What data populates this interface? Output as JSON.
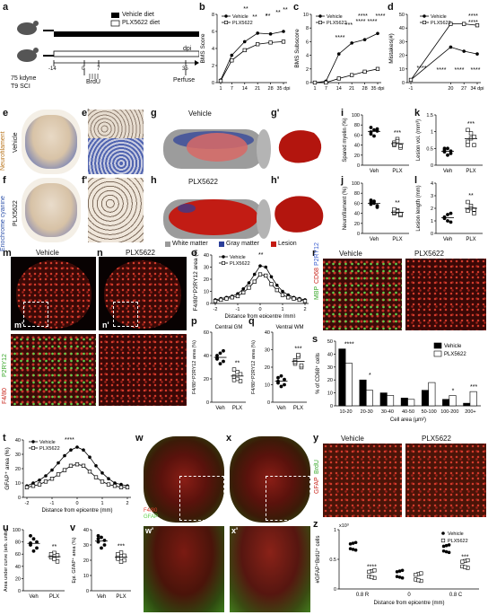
{
  "panel_letters": [
    "a",
    "b",
    "c",
    "d",
    "e",
    "e'",
    "f",
    "f'",
    "g",
    "g'",
    "h",
    "h'",
    "i",
    "j",
    "k",
    "l",
    "m",
    "n",
    "m'",
    "n'",
    "o",
    "p",
    "q",
    "r",
    "s",
    "t",
    "u",
    "v",
    "w",
    "x",
    "w'",
    "x'",
    "y",
    "z"
  ],
  "a": {
    "legend_vehicle": "Vehicle diet",
    "legend_plx": "PLX5622 diet",
    "dpi": "dpi",
    "kdyne": "75 kdyne",
    "sci": "T9 SCI",
    "brdu": "BrdU",
    "perfuse": "Perfuse",
    "t_m14": "-14",
    "t_0": "0",
    "t_7": "7",
    "t_35": "35"
  },
  "side_labels": {
    "stain": "Eriochrome cyanine",
    "neuro": "Neurofilament",
    "vehicle": "Vehicle",
    "plx": "PLX5622",
    "p2ry12": "P2RY12",
    "f480": "F4/80",
    "mbp": "MBP",
    "cd68": "CD68",
    "p2ry12b": "P2RY12",
    "gfap": "GFAP",
    "brdu": "BrdU",
    "f480b": "F4/80",
    "gfapb": "GFAP"
  },
  "g_legend": {
    "white": "White matter",
    "gray": "Gray matter",
    "lesion": "Lesion"
  },
  "titles": {
    "g": "Vehicle",
    "h": "PLX5622",
    "m": "Vehicle",
    "n": "PLX5622",
    "r_veh": "Vehicle",
    "r_plx": "PLX5622",
    "y_veh": "Vehicle",
    "y_plx": "PLX5622",
    "p": "Central GM",
    "q": "Ventral WM"
  },
  "colors": {
    "vehicle": "#000000",
    "plx": "#ffffff",
    "lesion": "#c41a12",
    "white_matter": "#9a9a9a",
    "gray_matter": "#2b3f9a"
  },
  "chart_data": [
    {
      "id": "b",
      "type": "line",
      "ylabel": "BMS Score",
      "xlabel": "dpi",
      "x": [
        1,
        7,
        14,
        21,
        28,
        35
      ],
      "ylim": [
        0,
        8
      ],
      "yticks": [
        0,
        2,
        4,
        6,
        8
      ],
      "xticks": [
        "1",
        "7",
        "14",
        "21",
        "28",
        "35 dpi"
      ],
      "series": [
        {
          "name": "Vehicle",
          "values": [
            0.3,
            3.2,
            4.8,
            5.8,
            5.7,
            6.0
          ]
        },
        {
          "name": "PLX5622",
          "values": [
            0.2,
            2.6,
            3.8,
            4.5,
            4.7,
            4.8
          ]
        }
      ],
      "annotations": [
        "**",
        "**",
        "*",
        "**",
        "**"
      ]
    },
    {
      "id": "c",
      "type": "line",
      "ylabel": "BMS Subscore",
      "xlabel": "dpi",
      "x": [
        1,
        7,
        14,
        21,
        28,
        35
      ],
      "ylim": [
        0,
        10
      ],
      "yticks": [
        0,
        2,
        4,
        6,
        8,
        10
      ],
      "xticks": [
        "1",
        "7",
        "14",
        "21",
        "28",
        "35 dpi"
      ],
      "series": [
        {
          "name": "Vehicle",
          "values": [
            0,
            0.2,
            4.2,
            5.8,
            6.3,
            7.2
          ]
        },
        {
          "name": "PLX5622",
          "values": [
            0,
            0,
            0.6,
            1.1,
            1.6,
            2.0
          ]
        }
      ],
      "annotations": [
        "****",
        "***",
        "****",
        "****",
        "****"
      ]
    },
    {
      "id": "d",
      "type": "line",
      "ylabel": "Mistakes(#)",
      "xlabel": "dpi",
      "x": [
        -1,
        20,
        27,
        34
      ],
      "xticks": [
        "-1",
        "20",
        "27",
        "34 dpi"
      ],
      "ylim": [
        0,
        50
      ],
      "yticks": [
        0,
        10,
        20,
        30,
        40,
        50
      ],
      "series": [
        {
          "name": "Vehicle",
          "values": [
            2,
            26,
            23,
            21
          ]
        },
        {
          "name": "PLX5622",
          "values": [
            2,
            43,
            43,
            42
          ]
        }
      ],
      "annotations": [
        "****",
        "****",
        "****",
        "****"
      ]
    },
    {
      "id": "i",
      "type": "scatter",
      "ylabel": "Spared myelin (%)",
      "categories": [
        "Veh",
        "PLX"
      ],
      "ylim": [
        0,
        100
      ],
      "yticks": [
        0,
        20,
        40,
        60,
        80,
        100
      ],
      "series": [
        {
          "name": "Veh",
          "values": [
            62,
            70,
            68,
            75,
            58,
            72,
            66
          ]
        },
        {
          "name": "PLX",
          "values": [
            40,
            52,
            35,
            45,
            48,
            38,
            42
          ]
        }
      ],
      "annotations": [
        "***"
      ]
    },
    {
      "id": "j",
      "type": "scatter",
      "ylabel": "Neurofilament (%)",
      "categories": [
        "Veh",
        "PLX"
      ],
      "ylim": [
        0,
        100
      ],
      "yticks": [
        0,
        20,
        40,
        60,
        80,
        100
      ],
      "series": [
        {
          "name": "Veh",
          "values": [
            58,
            64,
            55,
            62,
            60,
            52,
            66
          ]
        },
        {
          "name": "PLX",
          "values": [
            40,
            46,
            36,
            42,
            44,
            38,
            48
          ]
        }
      ],
      "annotations": [
        "**"
      ]
    },
    {
      "id": "k",
      "type": "scatter",
      "ylabel": "Lesion vol. (mm³)",
      "categories": [
        "Veh",
        "PLX"
      ],
      "ylim": [
        0,
        1.5
      ],
      "yticks": [
        0,
        0.5,
        1.0,
        1.5
      ],
      "series": [
        {
          "name": "Veh",
          "values": [
            0.4,
            0.5,
            0.35,
            0.45,
            0.3,
            0.42,
            0.5
          ]
        },
        {
          "name": "PLX",
          "values": [
            0.7,
            0.95,
            0.6,
            1.05,
            0.8,
            0.85,
            0.6
          ]
        }
      ],
      "annotations": [
        "***"
      ]
    },
    {
      "id": "l",
      "type": "scatter",
      "ylabel": "Lesion length (mm)",
      "categories": [
        "Veh",
        "PLX"
      ],
      "ylim": [
        0,
        4
      ],
      "yticks": [
        0,
        1,
        2,
        3,
        4
      ],
      "series": [
        {
          "name": "Veh",
          "values": [
            1.2,
            1.5,
            0.9,
            1.3,
            1.0,
            1.6
          ]
        },
        {
          "name": "PLX",
          "values": [
            1.8,
            2.2,
            1.6,
            2.5,
            2.0,
            1.9
          ]
        }
      ],
      "annotations": [
        "**"
      ]
    },
    {
      "id": "o",
      "type": "line",
      "ylabel": "F4/80⁺P2RY12 area (%)",
      "xlabel": "Distance from epicentre (mm)",
      "x": [
        -2,
        -1.75,
        -1.5,
        -1.25,
        -1,
        -0.75,
        -0.5,
        -0.25,
        0,
        0.25,
        0.5,
        0.75,
        1,
        1.25,
        1.5,
        1.75,
        2
      ],
      "xticks": [
        "-2",
        "-1",
        "0",
        "1",
        "2"
      ],
      "ylim": [
        0,
        40
      ],
      "yticks": [
        0,
        10,
        20,
        30,
        40
      ],
      "series": [
        {
          "name": "Vehicle",
          "values": [
            3,
            4,
            5,
            6,
            8,
            12,
            17,
            24,
            31,
            30,
            22,
            15,
            10,
            7,
            5,
            4,
            3
          ]
        },
        {
          "name": "PLX5622",
          "values": [
            2,
            3,
            4,
            5,
            6,
            9,
            13,
            18,
            24,
            23,
            16,
            11,
            7,
            5,
            4,
            3,
            2
          ]
        }
      ],
      "annotations": [
        "**"
      ]
    },
    {
      "id": "p",
      "type": "scatter",
      "title": "Central GM",
      "ylabel": "F4/80⁺P2RY12 area (%)",
      "categories": [
        "Veh",
        "PLX"
      ],
      "ylim": [
        0,
        60
      ],
      "yticks": [
        0,
        20,
        40,
        60
      ],
      "series": [
        {
          "name": "Veh",
          "values": [
            38,
            42,
            35,
            40,
            33,
            44,
            37
          ]
        },
        {
          "name": "PLX",
          "values": [
            22,
            26,
            18,
            28,
            20,
            24,
            19
          ]
        }
      ],
      "annotations": [
        "**"
      ]
    },
    {
      "id": "q",
      "type": "scatter",
      "title": "Ventral WM",
      "ylabel": "F4/80⁺P2RY12 area (%)",
      "categories": [
        "Veh",
        "PLX"
      ],
      "ylim": [
        0,
        40
      ],
      "yticks": [
        0,
        10,
        20,
        30,
        40
      ],
      "series": [
        {
          "name": "Veh",
          "values": [
            12,
            15,
            10,
            14,
            9,
            13,
            11
          ]
        },
        {
          "name": "PLX",
          "values": [
            22,
            26,
            20,
            24,
            27,
            21,
            23
          ]
        }
      ],
      "annotations": [
        "***"
      ]
    },
    {
      "id": "s",
      "type": "bar",
      "ylabel": "% of CD68⁺ cells",
      "xlabel": "Cell area (µm²)",
      "categories": [
        "10-20",
        "20-30",
        "30-40",
        "40-50",
        "50-100",
        "100-200",
        "200+"
      ],
      "ylim": [
        0,
        50
      ],
      "yticks": [
        0,
        10,
        20,
        30,
        40,
        50
      ],
      "series": [
        {
          "name": "Vehicle",
          "values": [
            44,
            20,
            10,
            6,
            12,
            5,
            2
          ]
        },
        {
          "name": "PLX5622",
          "values": [
            33,
            12,
            8,
            5,
            18,
            8,
            11
          ]
        }
      ],
      "annotations": [
        "****",
        "*",
        "",
        "",
        "",
        "*",
        "***"
      ]
    },
    {
      "id": "t",
      "type": "line",
      "ylabel": "GFAP⁺ area (%)",
      "xlabel": "Distance from epicentre (mm)",
      "x": [
        -2,
        -1.75,
        -1.5,
        -1.25,
        -1,
        -0.75,
        -0.5,
        -0.25,
        0,
        0.25,
        0.5,
        0.75,
        1,
        1.25,
        1.5,
        1.75,
        2
      ],
      "xticks": [
        "-2",
        "-1",
        "0",
        "1",
        "2"
      ],
      "ylim": [
        0,
        40
      ],
      "yticks": [
        0,
        10,
        20,
        30,
        40
      ],
      "series": [
        {
          "name": "Vehicle",
          "values": [
            8,
            10,
            12,
            15,
            19,
            24,
            29,
            33,
            35,
            33,
            28,
            22,
            17,
            13,
            10,
            9,
            8
          ]
        },
        {
          "name": "PLX5622",
          "values": [
            7,
            8,
            9,
            11,
            13,
            16,
            19,
            22,
            23,
            22,
            18,
            14,
            11,
            9,
            8,
            7,
            7
          ]
        }
      ],
      "annotations": [
        "****"
      ]
    },
    {
      "id": "u",
      "type": "scatter",
      "ylabel": "Area under curve (arb. units)",
      "categories": [
        "Veh",
        "PLX"
      ],
      "ylim": [
        0,
        100
      ],
      "yticks": [
        0,
        20,
        40,
        60,
        80,
        100
      ],
      "series": [
        {
          "name": "Veh",
          "values": [
            78,
            85,
            70,
            90,
            65,
            80,
            75
          ]
        },
        {
          "name": "PLX",
          "values": [
            55,
            62,
            48,
            60,
            52,
            58
          ]
        }
      ],
      "annotations": [
        "**"
      ]
    },
    {
      "id": "v",
      "type": "scatter",
      "ylabel": "Epi. GFAP⁺ area (%)",
      "categories": [
        "Veh",
        "PLX"
      ],
      "ylim": [
        0,
        40
      ],
      "yticks": [
        0,
        10,
        20,
        30,
        40
      ],
      "series": [
        {
          "name": "Veh",
          "values": [
            32,
            35,
            30,
            36,
            28,
            33,
            34
          ]
        },
        {
          "name": "PLX",
          "values": [
            22,
            25,
            20,
            24,
            19,
            23,
            21
          ]
        }
      ],
      "annotations": [
        "***"
      ]
    },
    {
      "id": "z",
      "type": "scatter",
      "ylabel": "#GFAP⁺BrdU⁺ cells",
      "xlabel": "Distance from epicentre (mm)",
      "categories": [
        "0.8 R",
        "0",
        "0.8 C"
      ],
      "ylim": [
        0,
        1.0
      ],
      "yticks": [
        0,
        0.5,
        1.0
      ],
      "yscale_label": "x10³",
      "series": [
        {
          "name": "Vehicle",
          "values": [
            0.72,
            0.25,
            0.68
          ]
        },
        {
          "name": "PLX5622",
          "values": [
            0.25,
            0.2,
            0.42
          ]
        }
      ],
      "annotations": [
        "****",
        "",
        "***"
      ]
    }
  ]
}
